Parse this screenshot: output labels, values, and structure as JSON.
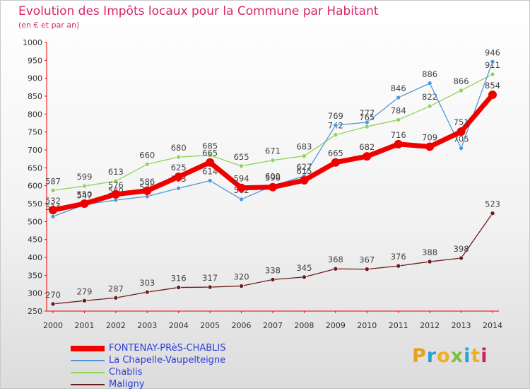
{
  "header": {
    "title": "Evolution des Impôts locaux pour la Commune par Habitant",
    "subtitle": "(en € et par an)"
  },
  "brand": {
    "letters": [
      "P",
      "r",
      "o",
      "x",
      "i",
      "t",
      "i"
    ],
    "colors": [
      "#e8a020",
      "#2aa0d8",
      "#f0b020",
      "#7cc040",
      "#2aa0d8",
      "#f0b020",
      "#d02060"
    ]
  },
  "chart_data": {
    "type": "line",
    "title": "Evolution des Impôts locaux pour la Commune par Habitant",
    "subtitle": "(en € et par an)",
    "categories": [
      "2000",
      "2001",
      "2002",
      "2003",
      "2004",
      "2005",
      "2006",
      "2007",
      "2008",
      "2009",
      "2010",
      "2011",
      "2012",
      "2013",
      "2014"
    ],
    "ylim": [
      250,
      1000
    ],
    "yticks": [
      250,
      300,
      350,
      400,
      450,
      500,
      550,
      600,
      650,
      700,
      750,
      800,
      850,
      900,
      950,
      1000
    ],
    "grid": false,
    "legend_position": "bottom-left",
    "series": [
      {
        "name": "Chablis",
        "color": "#8fd35a",
        "width": 1.3,
        "values": [
          587,
          599,
          613,
          660,
          680,
          685,
          655,
          671,
          683,
          742,
          765,
          784,
          822,
          866,
          911
        ]
      },
      {
        "name": "La Chapelle-Vaupelteigne",
        "color": "#4f97d8",
        "width": 1.3,
        "values": [
          514,
          547,
          560,
          570,
          593,
          614,
          562,
          600,
          627,
          769,
          777,
          846,
          886,
          705,
          946
        ]
      },
      {
        "name": "Maligny",
        "color": "#6b1d1d",
        "width": 1.3,
        "values": [
          270,
          279,
          287,
          303,
          316,
          317,
          320,
          338,
          345,
          368,
          367,
          376,
          388,
          398,
          523
        ]
      },
      {
        "name": "FONTENAY-PRèS-CHABLIS",
        "color": "#ee0000",
        "width": 7,
        "values": [
          532,
          550,
          576,
          586,
          625,
          665,
          594,
          596,
          615,
          665,
          682,
          716,
          709,
          751,
          854
        ]
      }
    ],
    "legend_order": [
      "FONTENAY-PRèS-CHABLIS",
      "La Chapelle-Vaupelteigne",
      "Chablis",
      "Maligny"
    ]
  }
}
